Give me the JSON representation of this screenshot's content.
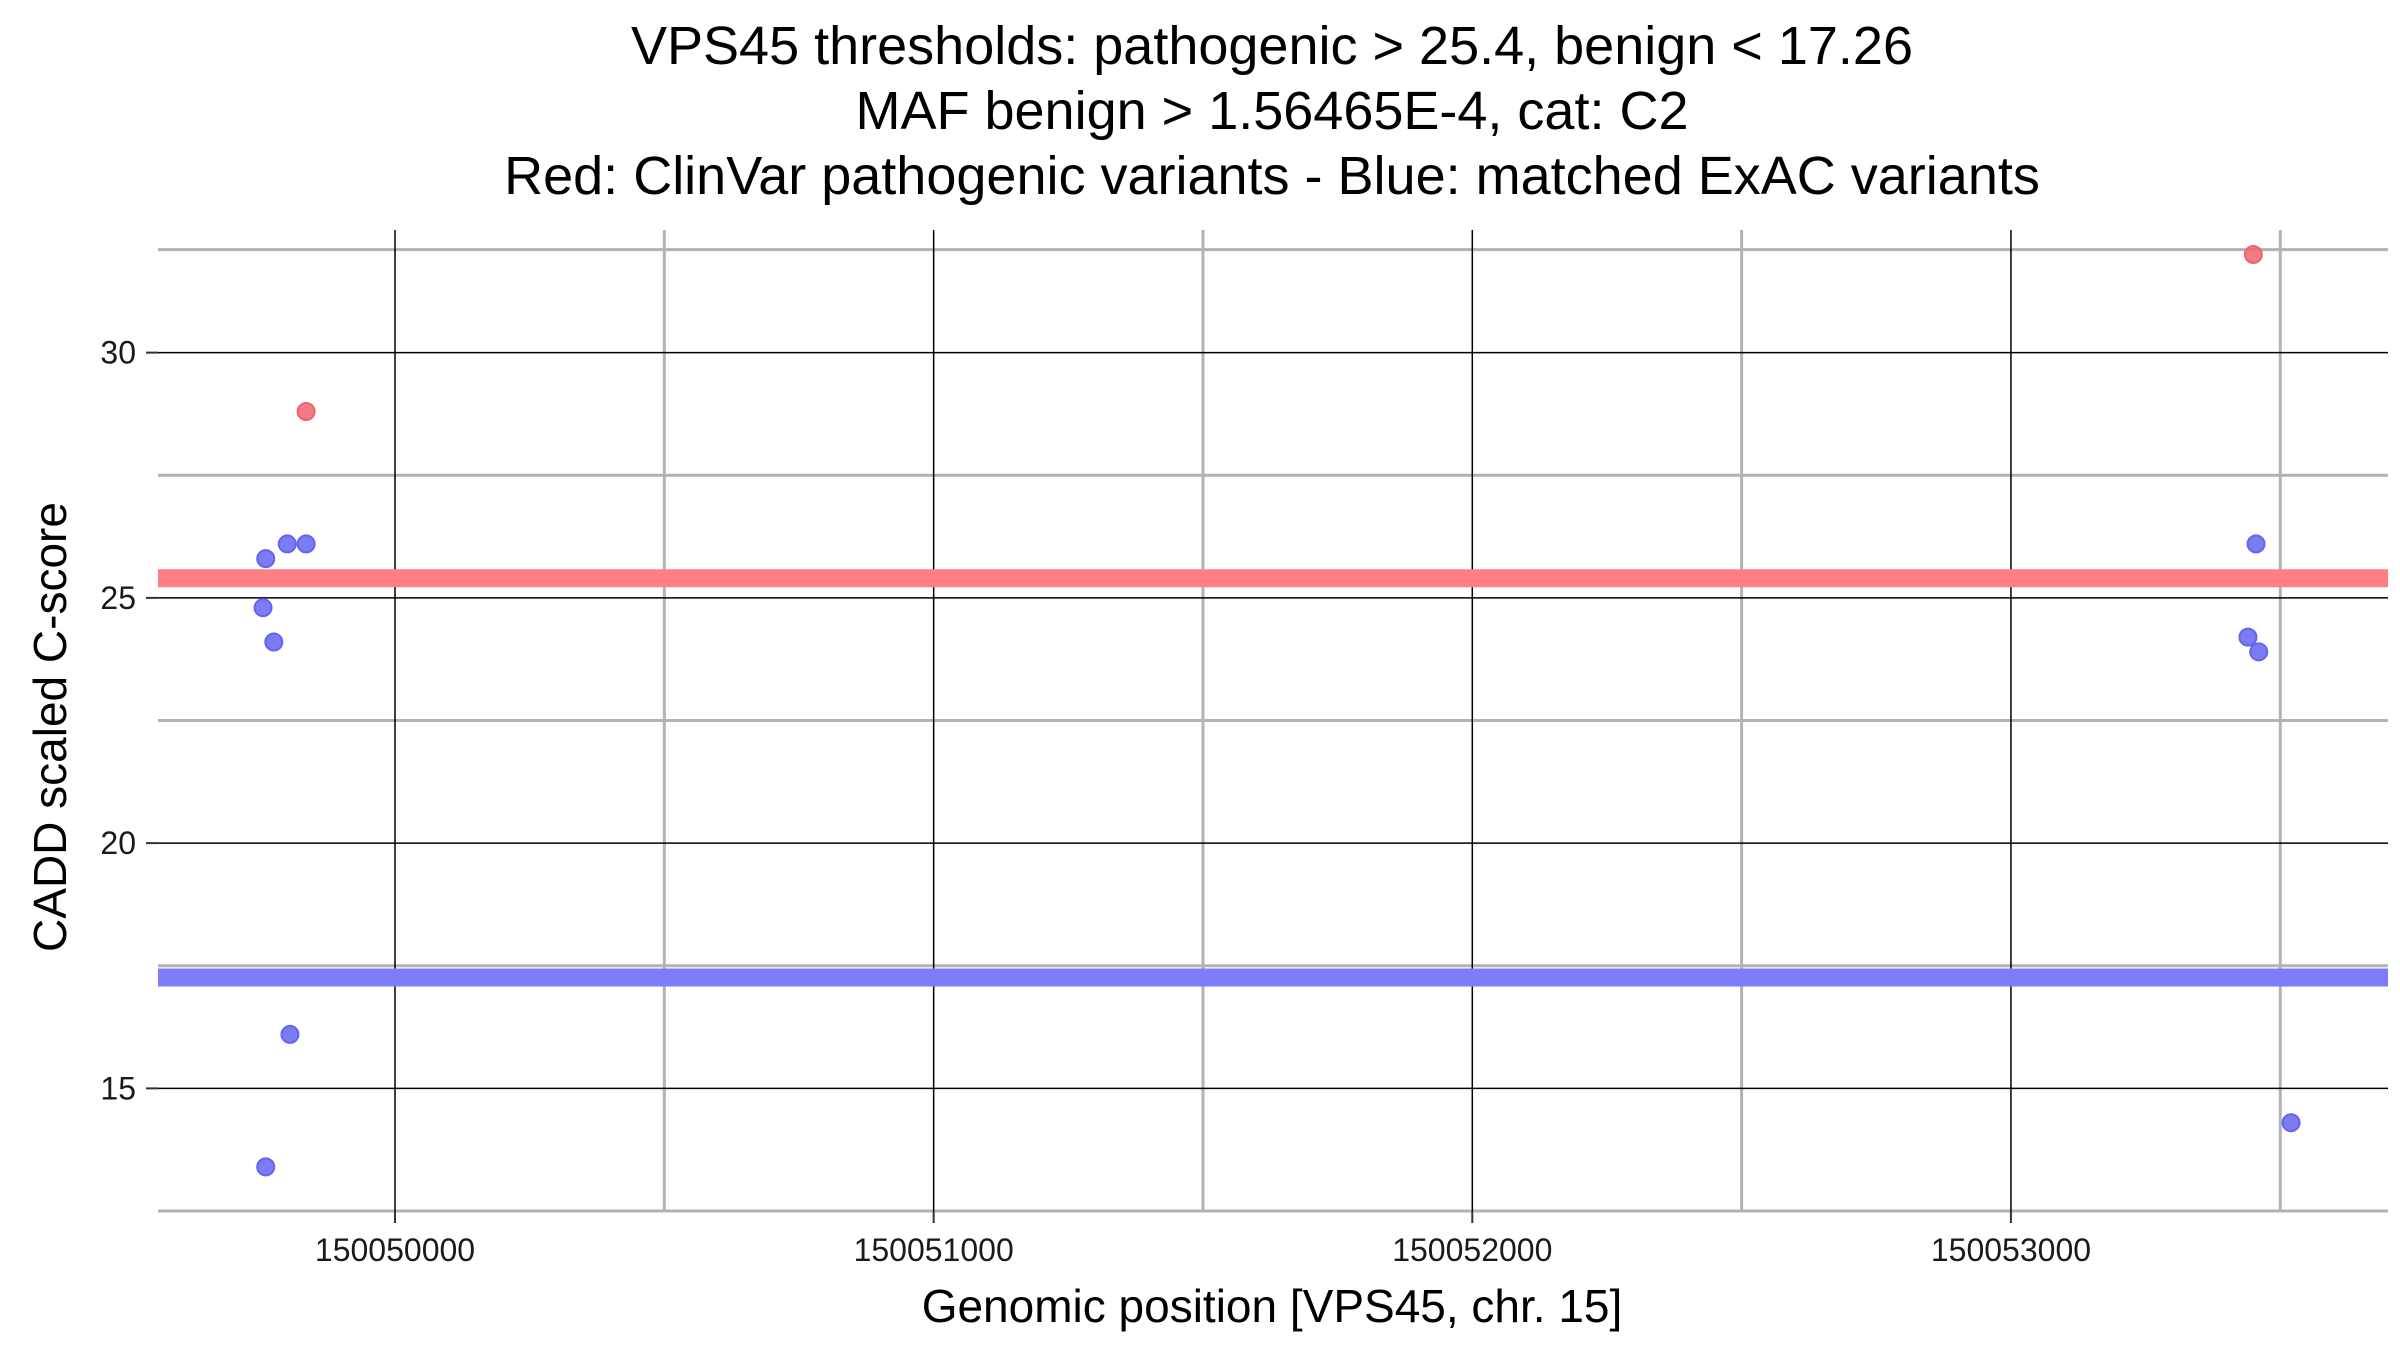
{
  "chart_data": {
    "type": "scatter",
    "title_lines": [
      "VPS45 thresholds: pathogenic > 25.4, benign < 17.26",
      "MAF benign > 1.56465E-4, cat: C2",
      "Red: ClinVar pathogenic variants - Blue: matched ExAC variants"
    ],
    "xlabel": "Genomic position [VPS45, chr. 15]",
    "ylabel": "CADD scaled C-score",
    "xlim": [
      150049560,
      150053700
    ],
    "ylim": [
      12.5,
      32.5
    ],
    "x_ticks": [
      150050000,
      150051000,
      150052000,
      150053000
    ],
    "x_tick_labels": [
      "150050000",
      "150051000",
      "150052000",
      "150053000"
    ],
    "x_minor_gridlines": [
      150050500,
      150051500,
      150052500,
      150053500
    ],
    "y_ticks": [
      15,
      20,
      25,
      30
    ],
    "y_tick_labels": [
      "15",
      "20",
      "25",
      "30"
    ],
    "y_minor_gridlines": [
      12.5,
      17.5,
      22.5,
      27.5,
      32.1
    ],
    "grid": true,
    "thresholds": [
      {
        "name": "pathogenic threshold",
        "value": 25.4,
        "color": "#ff7f84"
      },
      {
        "name": "benign threshold",
        "value": 17.26,
        "color": "#7d7dfb"
      }
    ],
    "series": [
      {
        "name": "ClinVar pathogenic variants",
        "color": "#f0646e",
        "points": [
          {
            "x": 150049835,
            "y": 28.8
          },
          {
            "x": 150053450,
            "y": 32.0
          }
        ]
      },
      {
        "name": "matched ExAC variants",
        "color": "#6464f0",
        "points": [
          {
            "x": 150049755,
            "y": 24.8
          },
          {
            "x": 150049760,
            "y": 25.8
          },
          {
            "x": 150049760,
            "y": 13.4
          },
          {
            "x": 150049775,
            "y": 24.1
          },
          {
            "x": 150049800,
            "y": 26.1
          },
          {
            "x": 150049805,
            "y": 16.1
          },
          {
            "x": 150049835,
            "y": 26.1
          },
          {
            "x": 150053440,
            "y": 24.2
          },
          {
            "x": 150053455,
            "y": 26.1
          },
          {
            "x": 150053460,
            "y": 23.9
          },
          {
            "x": 150053520,
            "y": 14.3
          }
        ]
      }
    ]
  }
}
